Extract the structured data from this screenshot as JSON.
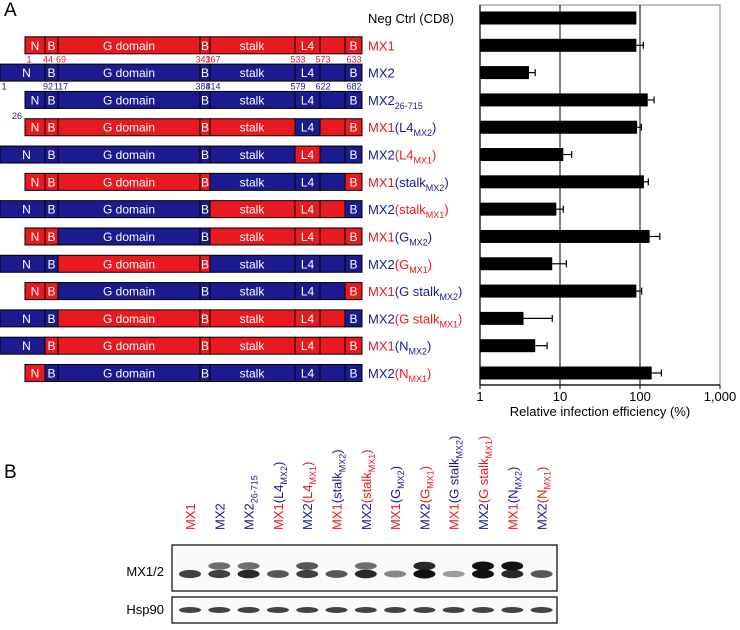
{
  "panels": [
    "A",
    "B"
  ],
  "chart_data": {
    "type": "bar",
    "orientation": "horizontal",
    "xscale": "log",
    "grid": true,
    "color": "#000000",
    "xlabel": "Relative infection efficiency (%)",
    "xlim": [
      1,
      1000
    ],
    "xticks": [
      1,
      10,
      100,
      {
        "value": 1000,
        "label": "1,000"
      }
    ],
    "categories": [
      [
        {
          "text": "Neg Ctrl (CD8)",
          "color": "#000000"
        }
      ],
      [
        {
          "text": "MX1",
          "color": "#e8191f"
        }
      ],
      [
        {
          "text": "MX2",
          "color": "#1b1a8e"
        }
      ],
      [
        {
          "text": "MX2",
          "color": "#1b1a8e"
        },
        {
          "text": "26-715",
          "color": "#1b1a8e",
          "sub": true
        }
      ],
      [
        {
          "text": "MX1",
          "color": "#e8191f"
        },
        {
          "text": "(L4",
          "color": "#1b1a8e"
        },
        {
          "text": "MX2",
          "color": "#1b1a8e",
          "sub": true
        },
        {
          "text": ")",
          "color": "#1b1a8e"
        }
      ],
      [
        {
          "text": "MX2",
          "color": "#1b1a8e"
        },
        {
          "text": "(L4",
          "color": "#e8191f"
        },
        {
          "text": "MX1",
          "color": "#e8191f",
          "sub": true
        },
        {
          "text": ")",
          "color": "#e8191f"
        }
      ],
      [
        {
          "text": "MX1",
          "color": "#e8191f"
        },
        {
          "text": "(stalk",
          "color": "#1b1a8e"
        },
        {
          "text": "MX2",
          "color": "#1b1a8e",
          "sub": true
        },
        {
          "text": ")",
          "color": "#1b1a8e"
        }
      ],
      [
        {
          "text": "MX2",
          "color": "#1b1a8e"
        },
        {
          "text": "(stalk",
          "color": "#e8191f"
        },
        {
          "text": "MX1",
          "color": "#e8191f",
          "sub": true
        },
        {
          "text": ")",
          "color": "#e8191f"
        }
      ],
      [
        {
          "text": "MX1",
          "color": "#e8191f"
        },
        {
          "text": "(G",
          "color": "#1b1a8e"
        },
        {
          "text": "MX2",
          "color": "#1b1a8e",
          "sub": true
        },
        {
          "text": ")",
          "color": "#1b1a8e"
        }
      ],
      [
        {
          "text": "MX2",
          "color": "#1b1a8e"
        },
        {
          "text": "(G",
          "color": "#e8191f"
        },
        {
          "text": "MX1",
          "color": "#e8191f",
          "sub": true
        },
        {
          "text": ")",
          "color": "#e8191f"
        }
      ],
      [
        {
          "text": "MX1",
          "color": "#e8191f"
        },
        {
          "text": "(G stalk",
          "color": "#1b1a8e"
        },
        {
          "text": "MX2",
          "color": "#1b1a8e",
          "sub": true
        },
        {
          "text": ")",
          "color": "#1b1a8e"
        }
      ],
      [
        {
          "text": "MX2",
          "color": "#1b1a8e"
        },
        {
          "text": "(G stalk",
          "color": "#e8191f"
        },
        {
          "text": "MX1",
          "color": "#e8191f",
          "sub": true
        },
        {
          "text": ")",
          "color": "#e8191f"
        }
      ],
      [
        {
          "text": "MX1",
          "color": "#e8191f"
        },
        {
          "text": "(N",
          "color": "#1b1a8e"
        },
        {
          "text": "MX2",
          "color": "#1b1a8e",
          "sub": true
        },
        {
          "text": ")",
          "color": "#1b1a8e"
        }
      ],
      [
        {
          "text": "MX2",
          "color": "#1b1a8e"
        },
        {
          "text": "(N",
          "color": "#e8191f"
        },
        {
          "text": "MX1",
          "color": "#e8191f",
          "sub": true
        },
        {
          "text": ")",
          "color": "#e8191f"
        }
      ]
    ],
    "values": [
      90,
      90,
      4.1,
      125,
      92,
      11,
      112,
      9,
      132,
      8,
      90,
      3.5,
      4.9,
      140
    ],
    "errors": [
      null,
      20,
      0.8,
      25,
      12,
      3,
      15,
      2,
      45,
      4,
      15,
      4.5,
      2,
      45
    ]
  },
  "palette": {
    "MX1": "#e8191f",
    "MX2": "#1b1a8e"
  },
  "domain_labels": [
    "N",
    "B",
    "G domain",
    "B",
    "stalk",
    "L4",
    "B"
  ],
  "constructs": [
    {
      "domains_from": [
        "MX1",
        "MX1",
        "MX1",
        "MX1",
        "MX1",
        "MX1",
        "MX1",
        "MX1"
      ],
      "residues": [
        1,
        44,
        69,
        341,
        367,
        533,
        573,
        633
      ]
    },
    {
      "domains_from": [
        "MX2",
        "MX2",
        "MX2",
        "MX2",
        "MX2",
        "MX2",
        "MX2",
        "MX2"
      ],
      "residues": [
        1,
        92,
        117,
        388,
        414,
        579,
        622,
        682
      ]
    },
    {
      "domains_from": [
        "MX2",
        "MX2",
        "MX2",
        "MX2",
        "MX2",
        "MX2",
        "MX2",
        "MX2"
      ],
      "residues": [
        26
      ]
    },
    {
      "domains_from": [
        "MX1",
        "MX1",
        "MX1",
        "MX1",
        "MX1",
        "MX2",
        "MX1",
        "MX1"
      ]
    },
    {
      "domains_from": [
        "MX2",
        "MX2",
        "MX2",
        "MX2",
        "MX2",
        "MX1",
        "MX2",
        "MX2"
      ]
    },
    {
      "domains_from": [
        "MX1",
        "MX1",
        "MX1",
        "MX1",
        "MX2",
        "MX2",
        "MX2",
        "MX1"
      ]
    },
    {
      "domains_from": [
        "MX2",
        "MX2",
        "MX2",
        "MX2",
        "MX1",
        "MX1",
        "MX1",
        "MX2"
      ]
    },
    {
      "domains_from": [
        "MX1",
        "MX1",
        "MX2",
        "MX2",
        "MX1",
        "MX1",
        "MX1",
        "MX1"
      ]
    },
    {
      "domains_from": [
        "MX2",
        "MX2",
        "MX1",
        "MX1",
        "MX2",
        "MX2",
        "MX2",
        "MX2"
      ]
    },
    {
      "domains_from": [
        "MX1",
        "MX1",
        "MX2",
        "MX2",
        "MX2",
        "MX2",
        "MX2",
        "MX1"
      ]
    },
    {
      "domains_from": [
        "MX2",
        "MX2",
        "MX1",
        "MX1",
        "MX1",
        "MX1",
        "MX1",
        "MX2"
      ]
    },
    {
      "domains_from": [
        "MX2",
        "MX1",
        "MX1",
        "MX1",
        "MX1",
        "MX1",
        "MX1",
        "MX1"
      ]
    },
    {
      "domains_from": [
        "MX1",
        "MX2",
        "MX2",
        "MX2",
        "MX2",
        "MX2",
        "MX2",
        "MX2"
      ]
    }
  ],
  "blot": {
    "rows": [
      "MX1/2",
      "Hsp90"
    ]
  }
}
